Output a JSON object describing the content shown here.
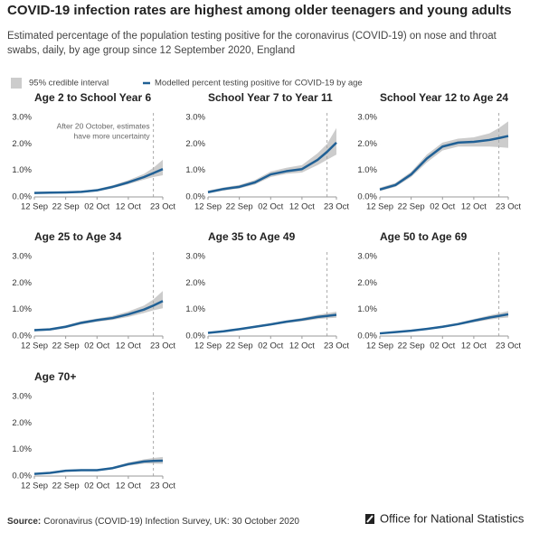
{
  "title": "COVID-19 infection rates are highest among older teenagers and young adults",
  "subtitle": [
    "Estimated percentage of the population testing positive for the coronavirus (COVID-19) on nose and throat",
    "swabs, daily, by age group since 12 September 2020, England"
  ],
  "legend": [
    {
      "name": "95% credible interval",
      "color": "#cccccc"
    },
    {
      "name": "Modelled percent testing positive for COVID-19 by age",
      "color": "#206095"
    }
  ],
  "source_label": "Source:",
  "source": "Coronavirus (COVID-19) Infection Survey, UK: 30 October 2020",
  "brand": "Office for National Statistics",
  "chart_data": [
    {
      "type": "line",
      "title": "Age 2 to School Year 6",
      "x": [
        0,
        5,
        10,
        15,
        20,
        25,
        30,
        35,
        38,
        41
      ],
      "values": [
        0.15,
        0.16,
        0.17,
        0.19,
        0.25,
        0.38,
        0.55,
        0.75,
        0.9,
        1.05
      ],
      "lower": [
        0.12,
        0.13,
        0.14,
        0.16,
        0.21,
        0.33,
        0.48,
        0.65,
        0.75,
        0.82
      ],
      "upper": [
        0.19,
        0.2,
        0.21,
        0.23,
        0.3,
        0.44,
        0.63,
        0.87,
        1.1,
        1.4
      ],
      "annotation": [
        "After 20 October, estimates",
        "have more uncertainty"
      ],
      "marker_x": 38,
      "xlim": [
        0,
        41
      ],
      "xticks": [
        {
          "value": 0,
          "label": "12 Sep"
        },
        {
          "value": 10,
          "label": "22 Sep"
        },
        {
          "value": 20,
          "label": "02 Oct"
        },
        {
          "value": 30,
          "label": "12 Oct"
        },
        {
          "value": 41,
          "label": "23 Oct"
        }
      ],
      "ylim": [
        0,
        3
      ],
      "yticks": [
        {
          "value": 0,
          "label": "0.0%"
        },
        {
          "value": 1,
          "label": "1.0%"
        },
        {
          "value": 2,
          "label": "2.0%"
        },
        {
          "value": 3,
          "label": "3.0%"
        }
      ]
    },
    {
      "type": "line",
      "title": "School Year 7 to Year 11",
      "x": [
        0,
        5,
        10,
        15,
        20,
        25,
        30,
        35,
        38,
        41
      ],
      "values": [
        0.18,
        0.3,
        0.38,
        0.55,
        0.85,
        0.97,
        1.05,
        1.4,
        1.7,
        2.05
      ],
      "lower": [
        0.13,
        0.24,
        0.32,
        0.47,
        0.75,
        0.87,
        0.92,
        1.2,
        1.4,
        1.6
      ],
      "upper": [
        0.24,
        0.36,
        0.45,
        0.64,
        0.96,
        1.1,
        1.2,
        1.65,
        2.0,
        2.6
      ],
      "marker_x": 38,
      "xlim": [
        0,
        41
      ],
      "xticks": [
        {
          "value": 0,
          "label": "12 Sep"
        },
        {
          "value": 10,
          "label": "22 Sep"
        },
        {
          "value": 20,
          "label": "02 Oct"
        },
        {
          "value": 30,
          "label": "12 Oct"
        },
        {
          "value": 41,
          "label": "23 Oct"
        }
      ],
      "ylim": [
        0,
        3
      ],
      "yticks": [
        {
          "value": 0,
          "label": "0.0%"
        },
        {
          "value": 1,
          "label": "1.0%"
        },
        {
          "value": 2,
          "label": "2.0%"
        },
        {
          "value": 3,
          "label": "3.0%"
        }
      ]
    },
    {
      "type": "line",
      "title": "School Year 12 to Age 24",
      "x": [
        0,
        5,
        10,
        15,
        20,
        25,
        30,
        35,
        38,
        41
      ],
      "values": [
        0.28,
        0.45,
        0.85,
        1.45,
        1.9,
        2.05,
        2.08,
        2.15,
        2.22,
        2.3
      ],
      "lower": [
        0.22,
        0.38,
        0.75,
        1.3,
        1.75,
        1.9,
        1.9,
        1.9,
        1.88,
        1.85
      ],
      "upper": [
        0.35,
        0.53,
        0.95,
        1.6,
        2.05,
        2.2,
        2.25,
        2.4,
        2.6,
        2.85
      ],
      "marker_x": 38,
      "xlim": [
        0,
        41
      ],
      "xticks": [
        {
          "value": 0,
          "label": "12 Sep"
        },
        {
          "value": 10,
          "label": "22 Sep"
        },
        {
          "value": 20,
          "label": "02 Oct"
        },
        {
          "value": 30,
          "label": "12 Oct"
        },
        {
          "value": 41,
          "label": "23 Oct"
        }
      ],
      "ylim": [
        0,
        3
      ],
      "yticks": [
        {
          "value": 0,
          "label": "0.0%"
        },
        {
          "value": 1,
          "label": "1.0%"
        },
        {
          "value": 2,
          "label": "2.0%"
        },
        {
          "value": 3,
          "label": "3.0%"
        }
      ]
    },
    {
      "type": "line",
      "title": "Age 25 to Age 34",
      "x": [
        0,
        5,
        10,
        15,
        20,
        25,
        30,
        35,
        38,
        41
      ],
      "values": [
        0.22,
        0.25,
        0.35,
        0.5,
        0.6,
        0.68,
        0.82,
        1.0,
        1.15,
        1.32
      ],
      "lower": [
        0.18,
        0.21,
        0.3,
        0.44,
        0.54,
        0.61,
        0.72,
        0.87,
        0.97,
        1.05
      ],
      "upper": [
        0.27,
        0.3,
        0.4,
        0.56,
        0.66,
        0.76,
        0.93,
        1.15,
        1.38,
        1.7
      ],
      "marker_x": 38,
      "xlim": [
        0,
        41
      ],
      "xticks": [
        {
          "value": 0,
          "label": "12 Sep"
        },
        {
          "value": 10,
          "label": "22 Sep"
        },
        {
          "value": 20,
          "label": "02 Oct"
        },
        {
          "value": 30,
          "label": "12 Oct"
        },
        {
          "value": 41,
          "label": "23 Oct"
        }
      ],
      "ylim": [
        0,
        3
      ],
      "yticks": [
        {
          "value": 0,
          "label": "0.0%"
        },
        {
          "value": 1,
          "label": "1.0%"
        },
        {
          "value": 2,
          "label": "2.0%"
        },
        {
          "value": 3,
          "label": "3.0%"
        }
      ]
    },
    {
      "type": "line",
      "title": "Age 35 to Age 49",
      "x": [
        0,
        5,
        10,
        15,
        20,
        25,
        30,
        35,
        38,
        41
      ],
      "values": [
        0.12,
        0.18,
        0.26,
        0.35,
        0.44,
        0.54,
        0.62,
        0.72,
        0.76,
        0.8
      ],
      "lower": [
        0.1,
        0.15,
        0.23,
        0.31,
        0.4,
        0.49,
        0.56,
        0.64,
        0.67,
        0.69
      ],
      "upper": [
        0.14,
        0.21,
        0.29,
        0.39,
        0.48,
        0.59,
        0.68,
        0.8,
        0.86,
        0.92
      ],
      "marker_x": 38,
      "xlim": [
        0,
        41
      ],
      "xticks": [
        {
          "value": 0,
          "label": "12 Sep"
        },
        {
          "value": 10,
          "label": "22 Sep"
        },
        {
          "value": 20,
          "label": "02 Oct"
        },
        {
          "value": 30,
          "label": "12 Oct"
        },
        {
          "value": 41,
          "label": "23 Oct"
        }
      ],
      "ylim": [
        0,
        3
      ],
      "yticks": [
        {
          "value": 0,
          "label": "0.0%"
        },
        {
          "value": 1,
          "label": "1.0%"
        },
        {
          "value": 2,
          "label": "2.0%"
        },
        {
          "value": 3,
          "label": "3.0%"
        }
      ]
    },
    {
      "type": "line",
      "title": "Age 50 to Age 69",
      "x": [
        0,
        5,
        10,
        15,
        20,
        25,
        30,
        35,
        38,
        41
      ],
      "values": [
        0.1,
        0.15,
        0.2,
        0.27,
        0.35,
        0.45,
        0.58,
        0.7,
        0.76,
        0.82
      ],
      "lower": [
        0.08,
        0.13,
        0.18,
        0.24,
        0.31,
        0.41,
        0.52,
        0.62,
        0.67,
        0.7
      ],
      "upper": [
        0.12,
        0.17,
        0.22,
        0.3,
        0.39,
        0.5,
        0.64,
        0.78,
        0.86,
        0.94
      ],
      "marker_x": 38,
      "xlim": [
        0,
        41
      ],
      "xticks": [
        {
          "value": 0,
          "label": "12 Sep"
        },
        {
          "value": 10,
          "label": "22 Sep"
        },
        {
          "value": 20,
          "label": "02 Oct"
        },
        {
          "value": 30,
          "label": "12 Oct"
        },
        {
          "value": 41,
          "label": "23 Oct"
        }
      ],
      "ylim": [
        0,
        3
      ],
      "yticks": [
        {
          "value": 0,
          "label": "0.0%"
        },
        {
          "value": 1,
          "label": "1.0%"
        },
        {
          "value": 2,
          "label": "2.0%"
        },
        {
          "value": 3,
          "label": "3.0%"
        }
      ]
    },
    {
      "type": "line",
      "title": "Age 70+",
      "x": [
        0,
        5,
        10,
        15,
        20,
        25,
        30,
        35,
        38,
        41
      ],
      "values": [
        0.08,
        0.12,
        0.2,
        0.22,
        0.22,
        0.3,
        0.45,
        0.55,
        0.57,
        0.58
      ],
      "lower": [
        0.06,
        0.1,
        0.17,
        0.19,
        0.19,
        0.26,
        0.39,
        0.47,
        0.47,
        0.46
      ],
      "upper": [
        0.1,
        0.14,
        0.23,
        0.25,
        0.25,
        0.34,
        0.51,
        0.63,
        0.68,
        0.72
      ],
      "marker_x": 38,
      "xlim": [
        0,
        41
      ],
      "xticks": [
        {
          "value": 0,
          "label": "12 Sep"
        },
        {
          "value": 10,
          "label": "22 Sep"
        },
        {
          "value": 20,
          "label": "02 Oct"
        },
        {
          "value": 30,
          "label": "12 Oct"
        },
        {
          "value": 41,
          "label": "23 Oct"
        }
      ],
      "ylim": [
        0,
        3
      ],
      "yticks": [
        {
          "value": 0,
          "label": "0.0%"
        },
        {
          "value": 1,
          "label": "1.0%"
        },
        {
          "value": 2,
          "label": "2.0%"
        },
        {
          "value": 3,
          "label": "3.0%"
        }
      ]
    }
  ]
}
